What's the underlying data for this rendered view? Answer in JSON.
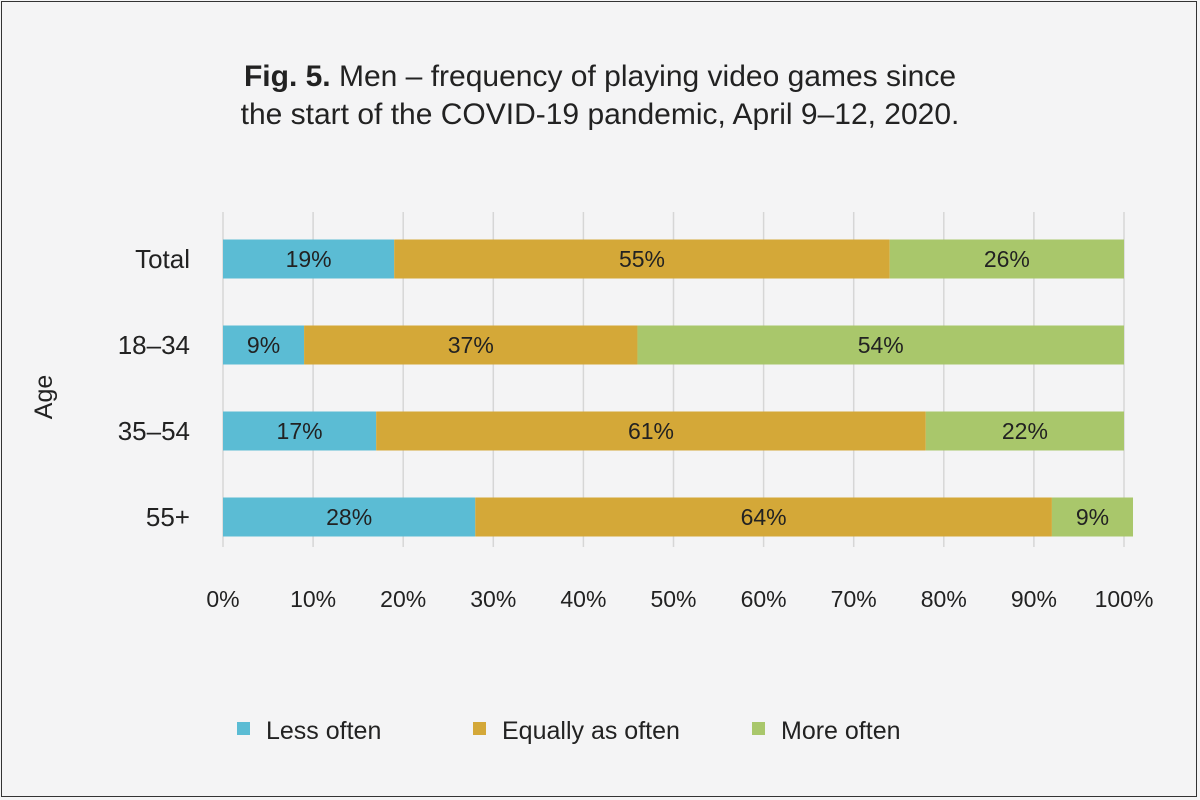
{
  "title": {
    "prefix": "Fig. 5.",
    "line1": " Men – frequency of playing video games since",
    "line2": "the start of the COVID-19 pandemic, April 9–12, 2020."
  },
  "chart_data": {
    "type": "bar",
    "orientation": "horizontal-stacked-100",
    "categories": [
      "Total",
      "18–34",
      "35–54",
      "55+"
    ],
    "ylabel": "Age",
    "xlabel": "",
    "xlim": [
      0,
      100
    ],
    "xticks": [
      "0%",
      "10%",
      "20%",
      "30%",
      "40%",
      "50%",
      "60%",
      "70%",
      "80%",
      "90%",
      "100%"
    ],
    "grid": "vertical",
    "legend_position": "bottom",
    "series": [
      {
        "name": "Less often",
        "color": "#5bbcd4",
        "values": [
          19,
          9,
          17,
          28
        ],
        "labels": [
          "19%",
          "9%",
          "17%",
          "28%"
        ]
      },
      {
        "name": "Equally as often",
        "color": "#d4a838",
        "values": [
          55,
          37,
          61,
          64
        ],
        "labels": [
          "55%",
          "37%",
          "61%",
          "64%"
        ]
      },
      {
        "name": "More often",
        "color": "#a9c76b",
        "values": [
          26,
          54,
          22,
          9
        ],
        "labels": [
          "26%",
          "54%",
          "22%",
          "9%"
        ]
      }
    ]
  }
}
